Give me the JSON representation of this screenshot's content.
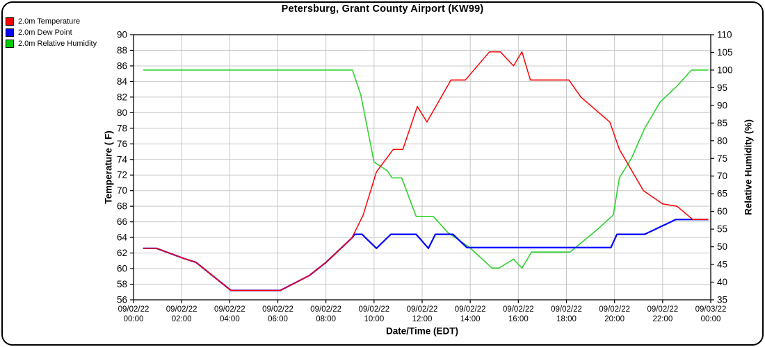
{
  "title": "Petersburg, Grant County Airport (KW99)",
  "legend": {
    "position": "top-left",
    "items": [
      {
        "label": "2.0m Temperature",
        "color": "#ff0000"
      },
      {
        "label": "2.0m Dew Point",
        "color": "#0000ff"
      },
      {
        "label": "2.0m Relative Humidity",
        "color": "#00cc00"
      }
    ]
  },
  "chart_data": {
    "type": "line",
    "title": "Petersburg, Grant County Airport (KW99)",
    "grid": true,
    "legend_position": "top-left",
    "x_axis": {
      "label": "Date/Time (EDT)",
      "t_unit": "hours since 09/02/22 00:00 EDT",
      "range": [
        0,
        24
      ],
      "tick_interval_hours": 2,
      "tick_labels": [
        {
          "date": "09/02/22",
          "time": "00:00"
        },
        {
          "date": "09/02/22",
          "time": "02:00"
        },
        {
          "date": "09/02/22",
          "time": "04:00"
        },
        {
          "date": "09/02/22",
          "time": "06:00"
        },
        {
          "date": "09/02/22",
          "time": "08:00"
        },
        {
          "date": "09/02/22",
          "time": "10:00"
        },
        {
          "date": "09/02/22",
          "time": "12:00"
        },
        {
          "date": "09/02/22",
          "time": "14:00"
        },
        {
          "date": "09/02/22",
          "time": "16:00"
        },
        {
          "date": "09/02/22",
          "time": "18:00"
        },
        {
          "date": "09/02/22",
          "time": "20:00"
        },
        {
          "date": "09/02/22",
          "time": "22:00"
        },
        {
          "date": "09/03/22",
          "time": "00:00"
        }
      ]
    },
    "y_axis_left": {
      "label": "Temperature ( F)",
      "range": [
        56,
        90
      ],
      "tick_step": 2
    },
    "y_axis_right": {
      "label": "Relative Humidity (%)",
      "range": [
        35,
        110
      ],
      "tick_step": 5
    },
    "series": [
      {
        "name": "2.0m Temperature",
        "axis": "left",
        "color": "#ff0000",
        "width": 1.5,
        "points": [
          [
            0.4,
            62.6
          ],
          [
            0.95,
            62.6
          ],
          [
            2.1,
            61.3
          ],
          [
            2.6,
            60.8
          ],
          [
            4.05,
            57.2
          ],
          [
            6.1,
            57.2
          ],
          [
            7.3,
            59.1
          ],
          [
            8.0,
            60.8
          ],
          [
            9.07,
            63.9
          ],
          [
            9.54,
            66.8
          ],
          [
            10.1,
            72.4
          ],
          [
            10.8,
            75.3
          ],
          [
            11.2,
            75.3
          ],
          [
            11.8,
            80.8
          ],
          [
            12.2,
            78.8
          ],
          [
            13.2,
            84.2
          ],
          [
            13.8,
            84.2
          ],
          [
            14.8,
            87.8
          ],
          [
            15.25,
            87.8
          ],
          [
            15.8,
            86.0
          ],
          [
            16.15,
            87.8
          ],
          [
            16.5,
            84.2
          ],
          [
            18.1,
            84.2
          ],
          [
            18.6,
            82.0
          ],
          [
            19.8,
            78.8
          ],
          [
            20.2,
            75.3
          ],
          [
            21.2,
            70.0
          ],
          [
            22.0,
            68.3
          ],
          [
            22.6,
            68.0
          ],
          [
            23.25,
            66.3
          ],
          [
            23.9,
            66.3
          ]
        ]
      },
      {
        "name": "2.0m Dew Point",
        "axis": "left",
        "color": "#0000ff",
        "width": 2.2,
        "points": [
          [
            0.4,
            62.6
          ],
          [
            0.95,
            62.6
          ],
          [
            2.1,
            61.3
          ],
          [
            2.6,
            60.8
          ],
          [
            4.05,
            57.2
          ],
          [
            6.1,
            57.2
          ],
          [
            7.3,
            59.1
          ],
          [
            8.0,
            60.8
          ],
          [
            9.07,
            63.9
          ],
          [
            9.2,
            64.4
          ],
          [
            9.5,
            64.4
          ],
          [
            10.1,
            62.6
          ],
          [
            10.7,
            64.4
          ],
          [
            11.75,
            64.4
          ],
          [
            12.26,
            62.6
          ],
          [
            12.55,
            64.4
          ],
          [
            13.28,
            64.4
          ],
          [
            13.86,
            62.7
          ],
          [
            19.85,
            62.7
          ],
          [
            20.1,
            64.4
          ],
          [
            21.25,
            64.4
          ],
          [
            22.55,
            66.3
          ],
          [
            23.9,
            66.3
          ]
        ]
      },
      {
        "name": "2.0m Relative Humidity",
        "axis": "right",
        "color": "#2fd32f",
        "width": 1.6,
        "points": [
          [
            0.4,
            100
          ],
          [
            9.1,
            100
          ],
          [
            9.45,
            93
          ],
          [
            10.0,
            74
          ],
          [
            10.55,
            71.5
          ],
          [
            10.75,
            69.5
          ],
          [
            11.15,
            69.5
          ],
          [
            11.75,
            58.6
          ],
          [
            12.46,
            58.6
          ],
          [
            13.07,
            54
          ],
          [
            13.94,
            50
          ],
          [
            14.9,
            44
          ],
          [
            15.2,
            44
          ],
          [
            15.8,
            46.5
          ],
          [
            16.15,
            44
          ],
          [
            16.55,
            48.5
          ],
          [
            18.15,
            48.5
          ],
          [
            19.3,
            55
          ],
          [
            19.95,
            59
          ],
          [
            20.2,
            69.5
          ],
          [
            20.7,
            75
          ],
          [
            21.25,
            83.5
          ],
          [
            21.9,
            91
          ],
          [
            22.6,
            95.5
          ],
          [
            23.2,
            100
          ],
          [
            23.9,
            100
          ]
        ]
      }
    ],
    "style": {
      "grid_color": "#c8c8c8",
      "frame_color": "#000000",
      "background": "#ffffff"
    }
  }
}
